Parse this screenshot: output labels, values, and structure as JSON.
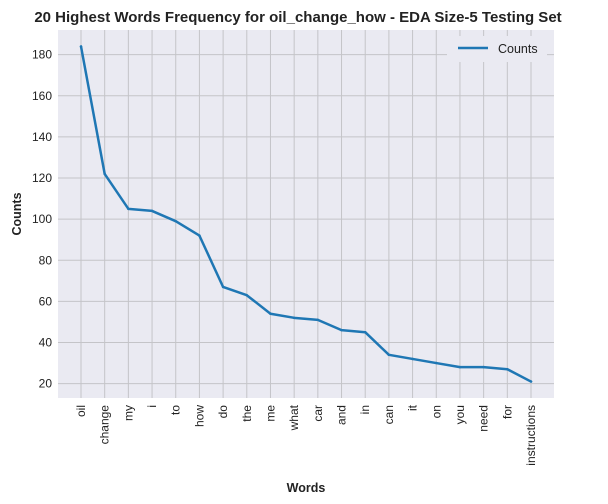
{
  "chart_data": {
    "type": "line",
    "title": "20 Highest Words Frequency for oil_change_how - EDA Size-5 Testing Set",
    "xlabel": "Words",
    "ylabel": "Counts",
    "categories": [
      "oil",
      "change",
      "my",
      "i",
      "to",
      "how",
      "do",
      "the",
      "me",
      "what",
      "car",
      "and",
      "in",
      "can",
      "it",
      "on",
      "you",
      "need",
      "for",
      "instructions"
    ],
    "series": [
      {
        "name": "Counts",
        "values": [
          184,
          122,
          105,
          104,
          99,
          92,
          67,
          63,
          54,
          52,
          51,
          46,
          45,
          34,
          32,
          30,
          28,
          28,
          27,
          21
        ],
        "color": "#1f77b4"
      }
    ],
    "ylim": [
      13,
      192
    ],
    "yticks": [
      20,
      40,
      60,
      80,
      100,
      120,
      140,
      160,
      180
    ],
    "grid": true,
    "legend_position": "top-right",
    "background_color": "#eaeaf2",
    "grid_color": "#c4c4c8"
  }
}
